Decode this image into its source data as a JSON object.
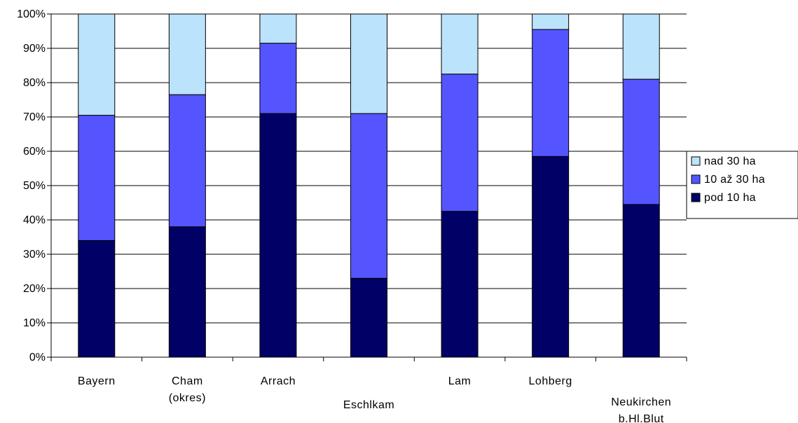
{
  "chart_data": {
    "type": "bar",
    "stacked": true,
    "categories": [
      "Bayern",
      "Cham (okres)",
      "Arrach",
      "Eschlkam",
      "Lam",
      "Lohberg",
      "Neukirchen b.Hl.Blut"
    ],
    "category_lines": [
      [
        "Bayern"
      ],
      [
        "Cham",
        "(okres)"
      ],
      [
        "Arrach"
      ],
      [
        "Eschlkam"
      ],
      [
        "Lam"
      ],
      [
        "Lohberg"
      ],
      [
        "Neukirchen",
        "b.Hl.Blut"
      ]
    ],
    "series": [
      {
        "name": "pod 10 ha",
        "color": "#000066",
        "values": [
          34,
          38,
          71,
          23,
          42.5,
          58.5,
          44.5
        ]
      },
      {
        "name": "10 až 30 ha",
        "color": "#5555ff",
        "values": [
          36.5,
          38.5,
          20.5,
          48,
          40,
          37,
          36.5
        ]
      },
      {
        "name": "nad 30 ha",
        "color": "#bbe3fb",
        "values": [
          29.5,
          23.5,
          8.5,
          29,
          17.5,
          4.5,
          19
        ]
      }
    ],
    "y_ticks": [
      "0%",
      "10%",
      "20%",
      "30%",
      "40%",
      "50%",
      "60%",
      "70%",
      "80%",
      "90%",
      "100%"
    ],
    "ylim": [
      0,
      100
    ],
    "grid": true,
    "legend_position": "right",
    "legend_order": [
      "nad 30 ha",
      "10 až 30 ha",
      "pod 10 ha"
    ],
    "title": "",
    "xlabel": "",
    "ylabel": ""
  }
}
